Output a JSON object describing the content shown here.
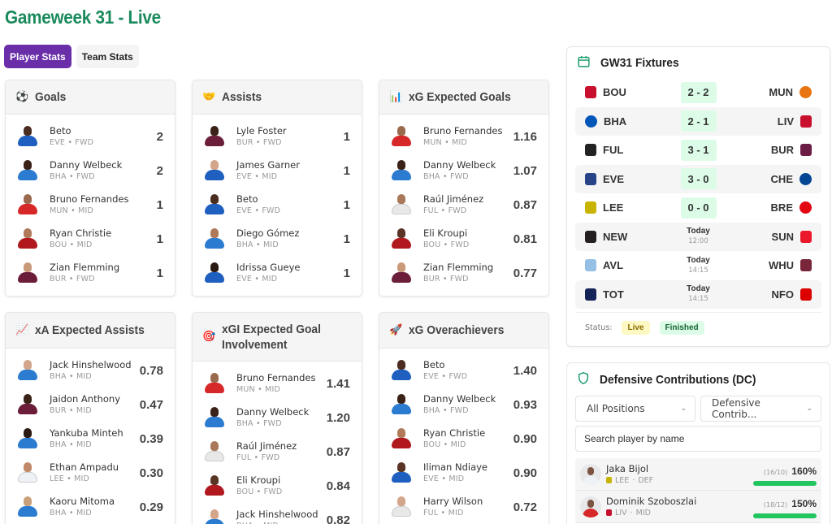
{
  "header": {
    "title": "Gameweek 31 - Live"
  },
  "tabs": [
    {
      "label": "Player Stats",
      "active": true
    },
    {
      "label": "Team Stats",
      "active": false
    }
  ],
  "colors": {
    "accent_green": "#1a8a5c",
    "tab_active": "#6a2fa8",
    "score_bg": "#dcfce7",
    "live_badge_bg": "#fef9c3",
    "finished_badge_bg": "#dcfce7",
    "dc_bar": "#22c55e"
  },
  "cards": [
    {
      "title": "Goals",
      "icon": "soccer-ball-icon",
      "glyph": "⚽",
      "rows": [
        {
          "name": "Beto",
          "team": "EVE",
          "pos": "FWD",
          "value": "2",
          "kit": "#1f5fbf",
          "skin": "#4a2c20"
        },
        {
          "name": "Danny Welbeck",
          "team": "BHA",
          "pos": "FWD",
          "value": "2",
          "kit": "#2b7bd1",
          "skin": "#3a2218"
        },
        {
          "name": "Bruno Fernandes",
          "team": "MUN",
          "pos": "MID",
          "value": "1",
          "kit": "#d62828",
          "skin": "#9a6a4e"
        },
        {
          "name": "Ryan Christie",
          "team": "BOU",
          "pos": "MID",
          "value": "1",
          "kit": "#b0181e",
          "skin": "#b07a5a"
        },
        {
          "name": "Zian Flemming",
          "team": "BUR",
          "pos": "FWD",
          "value": "1",
          "kit": "#6b1d3a",
          "skin": "#c99a7a"
        }
      ]
    },
    {
      "title": "Assists",
      "icon": "handshake-icon",
      "glyph": "🤝",
      "rows": [
        {
          "name": "Lyle Foster",
          "team": "BUR",
          "pos": "FWD",
          "value": "1",
          "kit": "#6b1d3a",
          "skin": "#3a2218"
        },
        {
          "name": "James Garner",
          "team": "EVE",
          "pos": "MID",
          "value": "1",
          "kit": "#1f5fbf",
          "skin": "#d3a58a"
        },
        {
          "name": "Beto",
          "team": "EVE",
          "pos": "FWD",
          "value": "1",
          "kit": "#1f5fbf",
          "skin": "#4a2c20"
        },
        {
          "name": "Diego Gómez",
          "team": "BHA",
          "pos": "MID",
          "value": "1",
          "kit": "#2b7bd1",
          "skin": "#b07a5a"
        },
        {
          "name": "Idrissa Gueye",
          "team": "EVE",
          "pos": "MID",
          "value": "1",
          "kit": "#1f5fbf",
          "skin": "#2a1a12"
        }
      ]
    },
    {
      "title": "xG Expected Goals",
      "icon": "bar-chart-icon",
      "glyph": "📊",
      "rows": [
        {
          "name": "Bruno Fernandes",
          "team": "MUN",
          "pos": "MID",
          "value": "1.16",
          "kit": "#d62828",
          "skin": "#9a6a4e"
        },
        {
          "name": "Danny Welbeck",
          "team": "BHA",
          "pos": "FWD",
          "value": "1.07",
          "kit": "#2b7bd1",
          "skin": "#3a2218"
        },
        {
          "name": "Raúl Jiménez",
          "team": "FUL",
          "pos": "FWD",
          "value": "0.87",
          "kit": "#e8e8e8",
          "skin": "#a87858"
        },
        {
          "name": "Eli Kroupi",
          "team": "BOU",
          "pos": "FWD",
          "value": "0.81",
          "kit": "#b0181e",
          "skin": "#5a3424"
        },
        {
          "name": "Zian Flemming",
          "team": "BUR",
          "pos": "FWD",
          "value": "0.77",
          "kit": "#6b1d3a",
          "skin": "#c99a7a"
        }
      ]
    },
    {
      "title": "xA Expected Assists",
      "icon": "trend-up-icon",
      "glyph": "📈",
      "rows": [
        {
          "name": "Jack Hinshelwood",
          "team": "BHA",
          "pos": "MID",
          "value": "0.78",
          "kit": "#2b7bd1",
          "skin": "#d3a58a"
        },
        {
          "name": "Jaidon Anthony",
          "team": "BUR",
          "pos": "MID",
          "value": "0.47",
          "kit": "#6b1d3a",
          "skin": "#3a2218"
        },
        {
          "name": "Yankuba Minteh",
          "team": "BHA",
          "pos": "MID",
          "value": "0.39",
          "kit": "#2b7bd1",
          "skin": "#2a1a12"
        },
        {
          "name": "Ethan Ampadu",
          "team": "LEE",
          "pos": "MID",
          "value": "0.30",
          "kit": "#eef1f6",
          "skin": "#c08a6a"
        },
        {
          "name": "Kaoru Mitoma",
          "team": "BHA",
          "pos": "MID",
          "value": "0.29",
          "kit": "#2b7bd1",
          "skin": "#c9a07a"
        }
      ]
    },
    {
      "title": "xGI Expected Goal Involvement",
      "icon": "target-icon",
      "glyph": "🎯",
      "rows": [
        {
          "name": "Bruno Fernandes",
          "team": "MUN",
          "pos": "MID",
          "value": "1.41",
          "kit": "#d62828",
          "skin": "#9a6a4e"
        },
        {
          "name": "Danny Welbeck",
          "team": "BHA",
          "pos": "FWD",
          "value": "1.20",
          "kit": "#2b7bd1",
          "skin": "#3a2218"
        },
        {
          "name": "Raúl Jiménez",
          "team": "FUL",
          "pos": "FWD",
          "value": "0.87",
          "kit": "#e8e8e8",
          "skin": "#a87858"
        },
        {
          "name": "Eli Kroupi",
          "team": "BOU",
          "pos": "FWD",
          "value": "0.84",
          "kit": "#b0181e",
          "skin": "#5a3424"
        },
        {
          "name": "Jack Hinshelwood",
          "team": "BHA",
          "pos": "MID",
          "value": "0.82",
          "kit": "#2b7bd1",
          "skin": "#d3a58a"
        }
      ]
    },
    {
      "title": "xG Overachievers",
      "icon": "rocket-icon",
      "glyph": "🚀",
      "rows": [
        {
          "name": "Beto",
          "team": "EVE",
          "pos": "FWD",
          "value": "1.40",
          "kit": "#1f5fbf",
          "skin": "#4a2c20"
        },
        {
          "name": "Danny Welbeck",
          "team": "BHA",
          "pos": "FWD",
          "value": "0.93",
          "kit": "#2b7bd1",
          "skin": "#3a2218"
        },
        {
          "name": "Ryan Christie",
          "team": "BOU",
          "pos": "MID",
          "value": "0.90",
          "kit": "#b0181e",
          "skin": "#b07a5a"
        },
        {
          "name": "Iliman Ndiaye",
          "team": "EVE",
          "pos": "MID",
          "value": "0.90",
          "kit": "#1f5fbf",
          "skin": "#5a3424"
        },
        {
          "name": "Harry Wilson",
          "team": "FUL",
          "pos": "MID",
          "value": "0.72",
          "kit": "#e8e8e8",
          "skin": "#d3a58a"
        }
      ]
    }
  ],
  "fixtures": {
    "title": "GW31 Fixtures",
    "icon": "calendar-icon",
    "matches": [
      {
        "home": "BOU",
        "away": "MUN",
        "score": "2 - 2",
        "home_color": "#c8102e",
        "away_color": "#e87511"
      },
      {
        "home": "BHA",
        "away": "LIV",
        "score": "2 - 1",
        "home_color": "#0057b8",
        "away_color": "#c8102e"
      },
      {
        "home": "FUL",
        "away": "BUR",
        "score": "3 - 1",
        "home_color": "#222222",
        "away_color": "#6c1d45"
      },
      {
        "home": "EVE",
        "away": "CHE",
        "score": "3 - 0",
        "home_color": "#274488",
        "away_color": "#034694"
      },
      {
        "home": "LEE",
        "away": "BRE",
        "score": "0 - 0",
        "home_color": "#c8b400",
        "away_color": "#e30613"
      },
      {
        "home": "NEW",
        "away": "SUN",
        "day": "Today",
        "time": "12:00",
        "home_color": "#241f20",
        "away_color": "#eb172b"
      },
      {
        "home": "AVL",
        "away": "WHU",
        "day": "Today",
        "time": "14:15",
        "home_color": "#95bfe5",
        "away_color": "#7a263a"
      },
      {
        "home": "TOT",
        "away": "NFO",
        "day": "Today",
        "time": "14:15",
        "home_color": "#132257",
        "away_color": "#dd0000"
      }
    ],
    "status_label": "Status:",
    "legend": [
      {
        "label": "Live"
      },
      {
        "label": "Finished"
      }
    ]
  },
  "dc": {
    "title": "Defensive Contributions (DC)",
    "icon": "shield-icon",
    "position_filter": "All Positions",
    "sort_filter": "Defensive Contrib...",
    "search_placeholder": "Search player by name",
    "players": [
      {
        "name": "Jaka Bijol",
        "team": "LEE",
        "pos": "DEF",
        "ratio": "(16/10)",
        "pct": "160%",
        "kit": "#eef1f6",
        "badge": "#c8b400"
      },
      {
        "name": "Dominik Szoboszlai",
        "team": "LIV",
        "pos": "MID",
        "ratio": "(18/12)",
        "pct": "150%",
        "kit": "#d62828",
        "badge": "#c8102e"
      }
    ]
  }
}
